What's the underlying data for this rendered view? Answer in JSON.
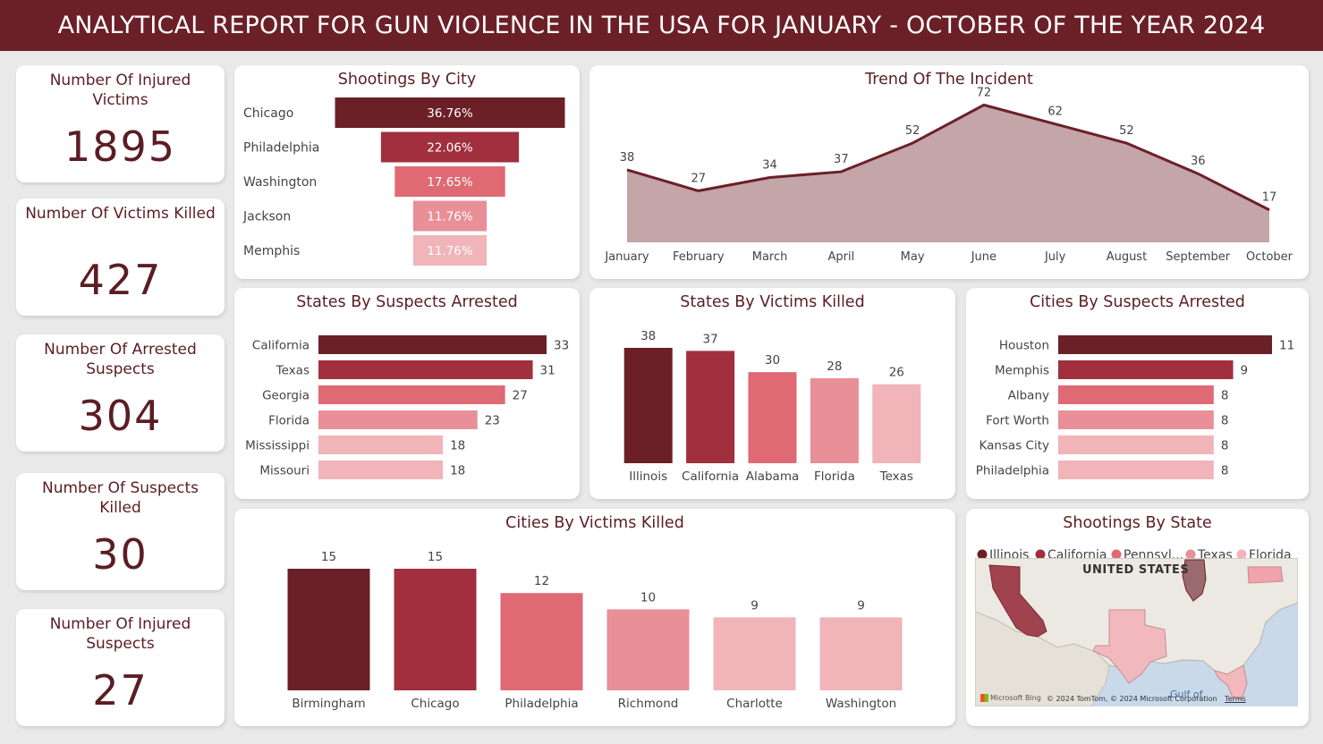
{
  "header": {
    "title": "ANALYTICAL REPORT FOR GUN VIOLENCE IN THE USA FOR JANUARY - OCTOBER OF THE YEAR 2024"
  },
  "kpis": [
    {
      "title": "Number Of Injured Victims",
      "value": "1895"
    },
    {
      "title": "Number Of Victims Killed",
      "value": "427"
    },
    {
      "title": "Number Of Arrested Suspects",
      "value": "304"
    },
    {
      "title": "Number Of Suspects Killed",
      "value": "30"
    },
    {
      "title": "Number Of Injured Suspects",
      "value": "27"
    }
  ],
  "colors": [
    "#6b2027",
    "#a12f3d",
    "#df6a74",
    "#e88f97",
    "#f0b4b9"
  ],
  "chart_data": [
    {
      "id": "shootings_by_city",
      "type": "bar",
      "subtype": "funnel",
      "title": "Shootings By City",
      "categories": [
        "Chicago",
        "Philadelphia",
        "Washington",
        "Jackson",
        "Memphis"
      ],
      "values": [
        36.76,
        22.06,
        17.65,
        11.76,
        11.76
      ],
      "labels": [
        "36.76%",
        "22.06%",
        "17.65%",
        "11.76%",
        "11.76%"
      ]
    },
    {
      "id": "trend",
      "type": "area",
      "title": "Trend Of The Incident",
      "categories": [
        "January",
        "February",
        "March",
        "April",
        "May",
        "June",
        "July",
        "August",
        "September",
        "October"
      ],
      "values": [
        38,
        27,
        34,
        37,
        52,
        72,
        62,
        52,
        36,
        17
      ],
      "ylim": [
        0,
        75
      ],
      "grid": false
    },
    {
      "id": "states_suspects_arrested",
      "type": "bar",
      "orientation": "horizontal",
      "title": "States By Suspects Arrested",
      "categories": [
        "California",
        "Texas",
        "Georgia",
        "Florida",
        "Mississippi",
        "Missouri"
      ],
      "values": [
        33,
        31,
        27,
        23,
        18,
        18
      ]
    },
    {
      "id": "states_victims_killed",
      "type": "bar",
      "orientation": "vertical",
      "title": "States By Victims Killed",
      "categories": [
        "Illinois",
        "California",
        "Alabama",
        "Florida",
        "Texas"
      ],
      "values": [
        38,
        37,
        30,
        28,
        26
      ]
    },
    {
      "id": "cities_suspects_arrested",
      "type": "bar",
      "orientation": "horizontal",
      "title": "Cities By Suspects Arrested",
      "categories": [
        "Houston",
        "Memphis",
        "Albany",
        "Fort Worth",
        "Kansas City",
        "Philadelphia"
      ],
      "values": [
        11,
        9,
        8,
        8,
        8,
        8
      ]
    },
    {
      "id": "cities_victims_killed",
      "type": "bar",
      "orientation": "vertical",
      "title": "Cities By Victims Killed",
      "categories": [
        "Birmingham",
        "Chicago",
        "Philadelphia",
        "Richmond",
        "Charlotte",
        "Washington"
      ],
      "values": [
        15,
        15,
        12,
        10,
        9,
        9
      ]
    }
  ],
  "map": {
    "title": "Shootings By State",
    "legend": [
      "Illinois",
      "California",
      "Pennsyl...",
      "Texas",
      "Florida"
    ],
    "country_label": "UNITED STATES",
    "gulf_label": "Gulf of",
    "brand": "Microsoft Bing",
    "copyright": "© 2024 TomTom, © 2024 Microsoft Corporation",
    "terms": "Terms"
  }
}
